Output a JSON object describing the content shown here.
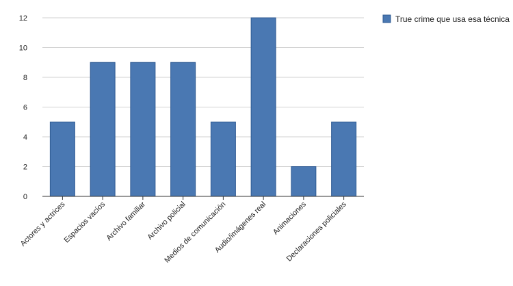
{
  "chart_data": {
    "type": "bar",
    "categories": [
      "Actores y actrices",
      "Espacios vacíos",
      "Archivo familiar",
      "Archivo policial",
      "Medios de comunicación",
      "Audio/imágenes real",
      "Animaciones",
      "Declaraciones policiales"
    ],
    "series": [
      {
        "name": "True crime que usa esa técnica",
        "values": [
          5,
          9,
          9,
          9,
          5,
          12,
          2,
          5
        ]
      }
    ],
    "ylim": [
      0,
      12
    ],
    "yticks": [
      0,
      2,
      4,
      6,
      8,
      10,
      12
    ],
    "grid": true,
    "legend_position": "top-right",
    "colors": {
      "bar": "#4a78b2",
      "bar_edge": "#2f5a92",
      "grid": "#d0d0d0",
      "axis": "#333333"
    }
  }
}
